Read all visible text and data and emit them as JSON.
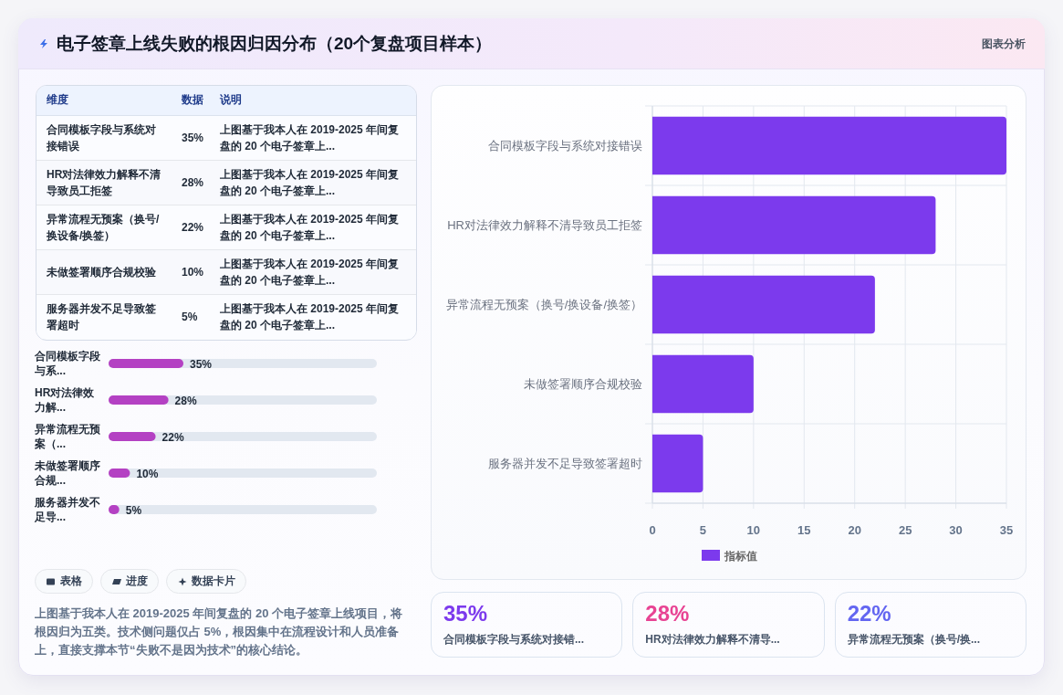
{
  "chart_data": [
    {
      "type": "other",
      "title": "电子签章上线失败的根因归因分布（20个复盘项目样本）",
      "annotations": [
        "图表分析"
      ]
    },
    {
      "type": "other",
      "categories": [
        "合同模板字段与系统对接错误",
        "HR对法律效力解释不清导致员工拒签",
        "异常流程无预案（换号/换设备/换签）",
        "未做签署顺序合规校验",
        "服务器并发不足导致签署超时"
      ],
      "values": [
        35,
        28,
        22,
        10,
        5
      ],
      "value_labels": [
        "35%",
        "28%",
        "22%",
        "10%",
        "5%"
      ],
      "annotations": [
        "维度",
        "数据",
        "说明",
        "上图基于我本人在 2019-2025 年间复盘的 20 个电子签章上...",
        "上图基于我本人在 2019-2025 年间复盘的 20 个电子签章上...",
        "上图基于我本人在 2019-2025 年间复盘的 20 个电子签章上...",
        "上图基于我本人在 2019-2025 年间复盘的 20 个电子签章上...",
        "上图基于我本人在 2019-2025 年间复盘的 20 个电子签章上..."
      ]
    },
    {
      "type": "bar",
      "orientation": "horizontal",
      "categories": [
        "合同模板字段与系...",
        "HR对法律效力解...",
        "异常流程无预案（...",
        "未做签署顺序合规...",
        "服务器并发不足导..."
      ],
      "values": [
        35,
        28,
        22,
        10,
        5
      ],
      "value_labels": [
        "35%",
        "28%",
        "22%",
        "10%",
        "5%"
      ],
      "color": "#b441c3",
      "tick_labels": "y"
    },
    {
      "type": "other",
      "annotations": [
        "表格",
        "进度",
        "数据卡片",
        "上图基于我本人在 2019-2025 年间复盘的 20 个电子签章上线项目，将根因归为五类。技术侧问题仅占 5%，根因集中在流程设计和人员准备上，直接支撑本节“失败不是因为技术”的核心结论。"
      ]
    },
    {
      "type": "bar",
      "orientation": "horizontal",
      "categories": [
        "合同模板字段与系统对接错误",
        "HR对法律效力解释不清导致员工拒签",
        "异常流程无预案（换号/换设备/换签）",
        "未做签署顺序合规校验",
        "服务器并发不足导致签署超时"
      ],
      "series": [
        {
          "name": "指标值",
          "color": "#7c3aed",
          "values": [
            35,
            28,
            22,
            10,
            5
          ]
        }
      ],
      "xlim": [
        0,
        35
      ],
      "xticks": [
        0,
        5,
        10,
        15,
        20,
        25,
        30,
        35
      ],
      "grid": true,
      "legend": "bottom"
    },
    {
      "type": "other",
      "categories": [
        "合同模板字段与系统对接错...",
        "HR对法律效力解释不清导...",
        "异常流程无预案（换号/换..."
      ],
      "values": [
        35,
        28,
        22
      ],
      "value_labels": [
        "35%",
        "28%",
        "22%"
      ],
      "colors": [
        "#7c3aed",
        "#e84393",
        "#6366f1"
      ]
    }
  ]
}
